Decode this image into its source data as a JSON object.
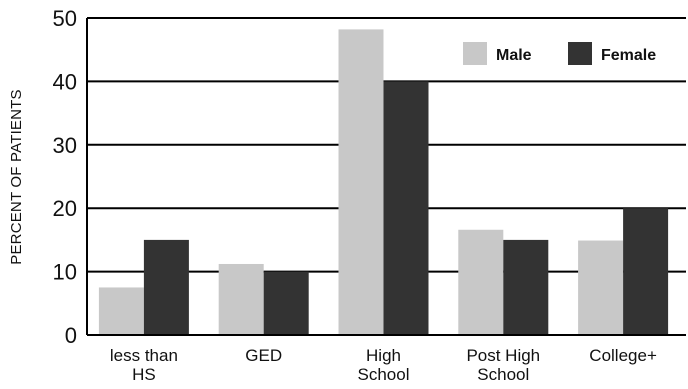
{
  "chart_data": {
    "type": "bar",
    "title": "",
    "xlabel": "",
    "ylabel": "PERCENT OF PATIENTS",
    "ylim": [
      0,
      50
    ],
    "yticks": [
      0,
      10,
      20,
      30,
      40,
      50
    ],
    "grid": true,
    "legend_position": "top-right",
    "categories": [
      [
        "less than",
        "HS"
      ],
      [
        "GED"
      ],
      [
        "High",
        "School"
      ],
      [
        "Post High",
        "School"
      ],
      [
        "College+"
      ]
    ],
    "series": [
      {
        "name": "Male",
        "color": "#c8c8c8",
        "values": [
          7.5,
          11.2,
          48.2,
          16.6,
          14.9
        ]
      },
      {
        "name": "Female",
        "color": "#333333",
        "values": [
          15.0,
          10.0,
          40.0,
          15.0,
          20.0
        ]
      }
    ]
  }
}
